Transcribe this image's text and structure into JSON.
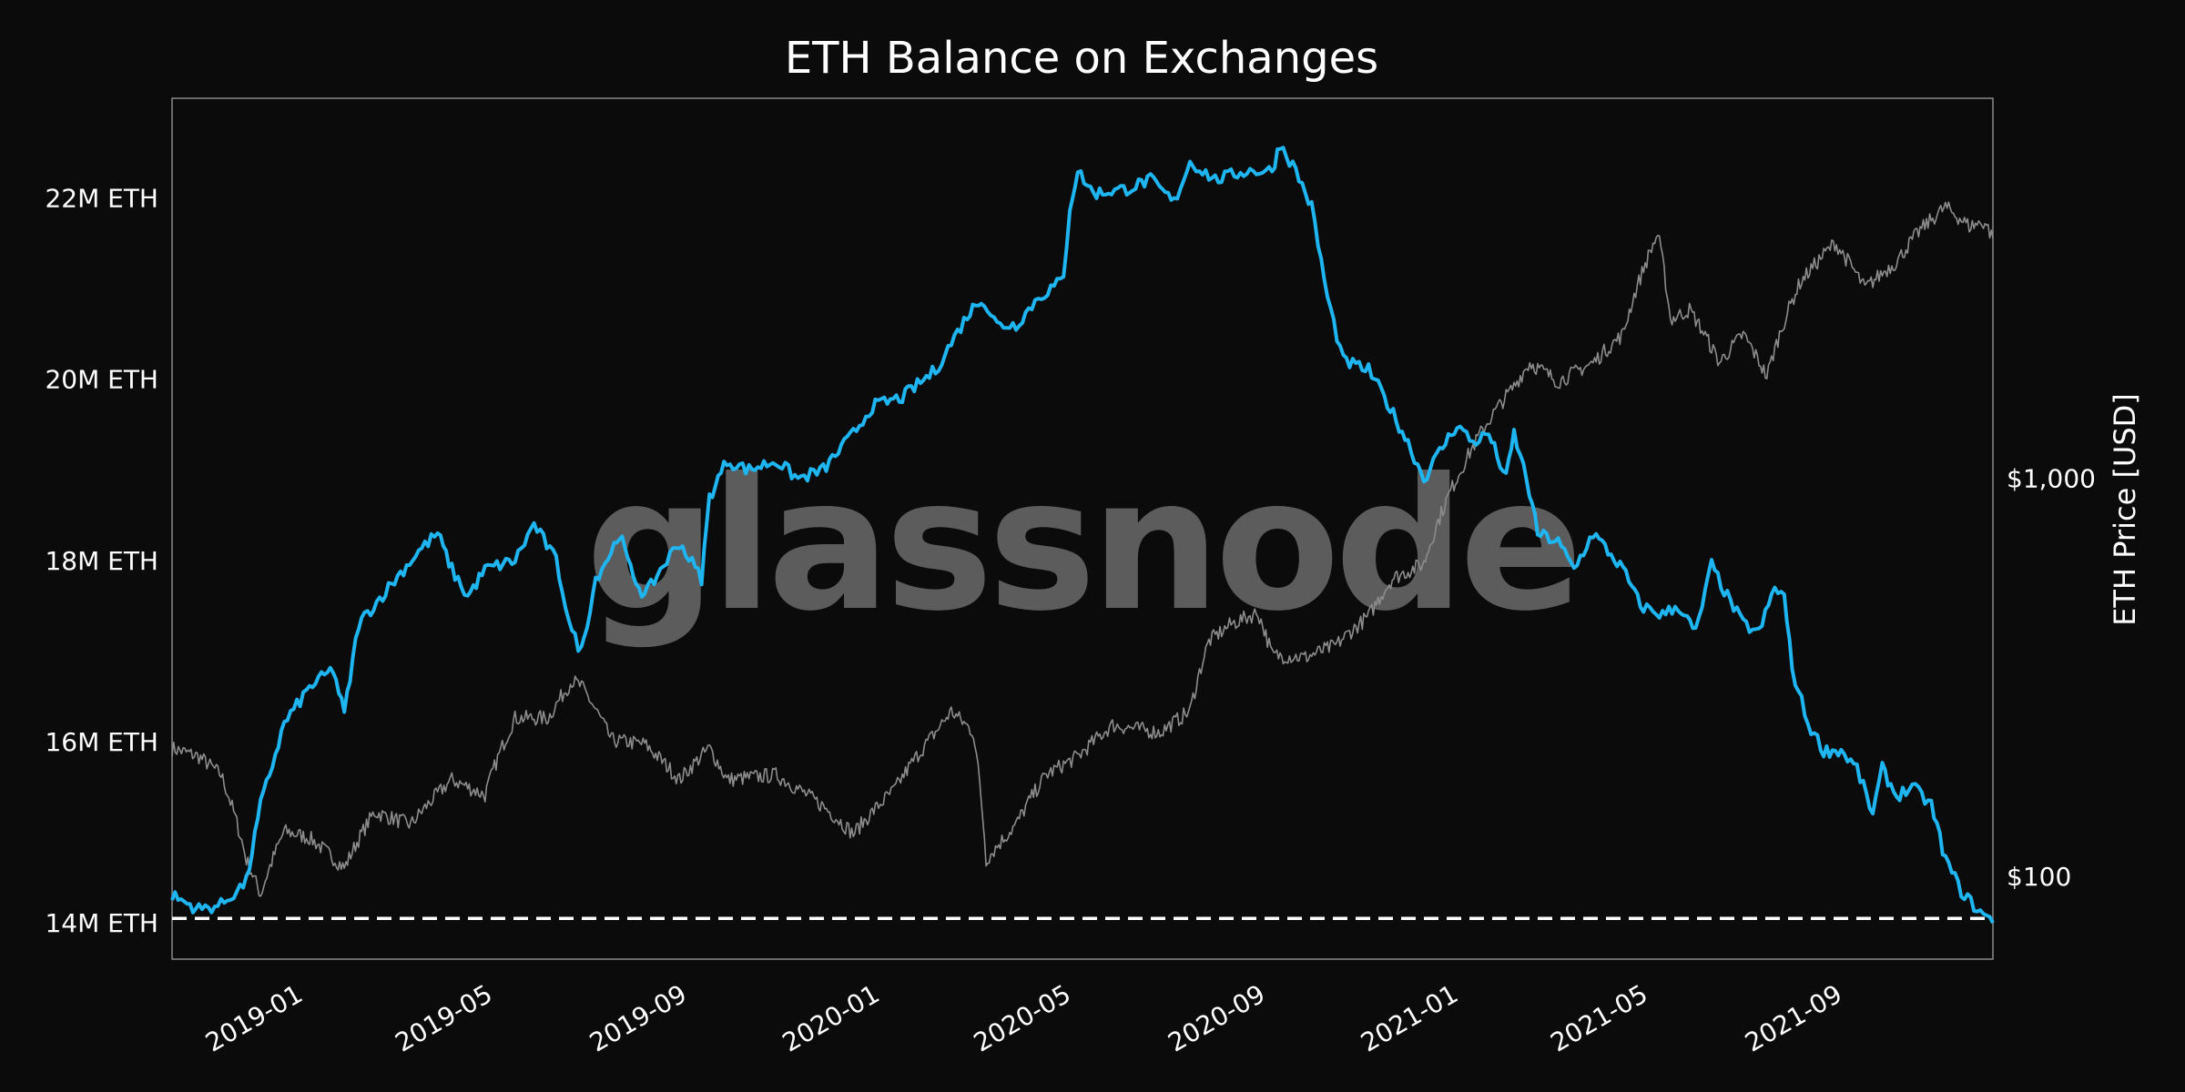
{
  "chart_data": {
    "type": "line",
    "title": "ETH Balance on Exchanges",
    "watermark": "glassnode",
    "xlabel": "",
    "ylabel_left": "",
    "ylabel_right": "ETH Price [USD]",
    "x_range": [
      "2018-10-15",
      "2021-12-10"
    ],
    "x_ticks": [
      "2019-01",
      "2019-05",
      "2019-09",
      "2020-01",
      "2020-05",
      "2020-09",
      "2021-01",
      "2021-05",
      "2021-09"
    ],
    "x_tick_dates": [
      "2019-01-01",
      "2019-05-01",
      "2019-09-01",
      "2020-01-01",
      "2020-05-01",
      "2020-09-01",
      "2021-01-01",
      "2021-05-01",
      "2021-09-01"
    ],
    "y_left_range": [
      13600000,
      23100000
    ],
    "y_left_ticks": [
      14000000,
      16000000,
      18000000,
      20000000,
      22000000
    ],
    "y_left_tick_labels": [
      "14M ETH",
      "16M ETH",
      "18M ETH",
      "20M ETH",
      "22M ETH"
    ],
    "y_right_scale": "log",
    "y_right_range": [
      62,
      9000
    ],
    "y_right_ticks": [
      100,
      1000
    ],
    "y_right_tick_labels": [
      "$100",
      "$1,000"
    ],
    "reference_line": {
      "value": 14050000,
      "style": "dashed",
      "color": "#ffffff"
    },
    "colors": {
      "balance": "#1eb5f0",
      "price": "#8c8c8c",
      "background": "#0b0b0b",
      "frame": "#8a8a8a"
    },
    "grid": false,
    "legend": "none",
    "series": [
      {
        "axis": "left",
        "color": "#1eb5f0",
        "points": [
          [
            "2018-10-15",
            14300000
          ],
          [
            "2018-11-01",
            14150000
          ],
          [
            "2018-11-15",
            14200000
          ],
          [
            "2018-12-01",
            14450000
          ],
          [
            "2018-12-10",
            15300000
          ],
          [
            "2018-12-25",
            16200000
          ],
          [
            "2019-01-10",
            16600000
          ],
          [
            "2019-01-25",
            16800000
          ],
          [
            "2019-02-01",
            16300000
          ],
          [
            "2019-02-10",
            17300000
          ],
          [
            "2019-03-01",
            17700000
          ],
          [
            "2019-03-20",
            18100000
          ],
          [
            "2019-04-01",
            18300000
          ],
          [
            "2019-04-10",
            17900000
          ],
          [
            "2019-04-20",
            17600000
          ],
          [
            "2019-05-01",
            17900000
          ],
          [
            "2019-05-20",
            18000000
          ],
          [
            "2019-06-01",
            18400000
          ],
          [
            "2019-06-15",
            18000000
          ],
          [
            "2019-06-25",
            17200000
          ],
          [
            "2019-07-01",
            17000000
          ],
          [
            "2019-07-10",
            17800000
          ],
          [
            "2019-07-20",
            18100000
          ],
          [
            "2019-07-25",
            18300000
          ],
          [
            "2019-08-01",
            17900000
          ],
          [
            "2019-08-10",
            17600000
          ],
          [
            "2019-08-20",
            17900000
          ],
          [
            "2019-09-01",
            18200000
          ],
          [
            "2019-09-15",
            17800000
          ],
          [
            "2019-09-20",
            18700000
          ],
          [
            "2019-10-01",
            19100000
          ],
          [
            "2019-10-15",
            19000000
          ],
          [
            "2019-11-01",
            19100000
          ],
          [
            "2019-11-15",
            18900000
          ],
          [
            "2019-12-01",
            19000000
          ],
          [
            "2019-12-20",
            19400000
          ],
          [
            "2020-01-01",
            19700000
          ],
          [
            "2020-01-20",
            19800000
          ],
          [
            "2020-02-10",
            20100000
          ],
          [
            "2020-03-01",
            20700000
          ],
          [
            "2020-03-10",
            20900000
          ],
          [
            "2020-03-20",
            20600000
          ],
          [
            "2020-04-01",
            20600000
          ],
          [
            "2020-04-15",
            20900000
          ],
          [
            "2020-05-01",
            21100000
          ],
          [
            "2020-05-05",
            21900000
          ],
          [
            "2020-05-10",
            22300000
          ],
          [
            "2020-05-20",
            22050000
          ],
          [
            "2020-06-10",
            22100000
          ],
          [
            "2020-06-25",
            22200000
          ],
          [
            "2020-07-10",
            21950000
          ],
          [
            "2020-07-20",
            22400000
          ],
          [
            "2020-08-05",
            22200000
          ],
          [
            "2020-08-25",
            22300000
          ],
          [
            "2020-09-10",
            22300000
          ],
          [
            "2020-09-15",
            22600000
          ],
          [
            "2020-09-25",
            22300000
          ],
          [
            "2020-10-05",
            21900000
          ],
          [
            "2020-10-15",
            20900000
          ],
          [
            "2020-10-25",
            20200000
          ],
          [
            "2020-11-10",
            20100000
          ],
          [
            "2020-11-20",
            19800000
          ],
          [
            "2020-12-05",
            19300000
          ],
          [
            "2020-12-15",
            18900000
          ],
          [
            "2020-12-25",
            19200000
          ],
          [
            "2021-01-05",
            19500000
          ],
          [
            "2021-01-15",
            19300000
          ],
          [
            "2021-01-25",
            19400000
          ],
          [
            "2021-02-05",
            18900000
          ],
          [
            "2021-02-10",
            19400000
          ],
          [
            "2021-02-18",
            18900000
          ],
          [
            "2021-02-25",
            18300000
          ],
          [
            "2021-03-10",
            18200000
          ],
          [
            "2021-03-20",
            17900000
          ],
          [
            "2021-04-01",
            18300000
          ],
          [
            "2021-04-20",
            17900000
          ],
          [
            "2021-05-01",
            17500000
          ],
          [
            "2021-05-15",
            17400000
          ],
          [
            "2021-05-25",
            17500000
          ],
          [
            "2021-06-05",
            17200000
          ],
          [
            "2021-06-15",
            17950000
          ],
          [
            "2021-06-25",
            17600000
          ],
          [
            "2021-07-05",
            17300000
          ],
          [
            "2021-07-15",
            17200000
          ],
          [
            "2021-07-25",
            17700000
          ],
          [
            "2021-07-31",
            17600000
          ],
          [
            "2021-08-05",
            16800000
          ],
          [
            "2021-08-15",
            16200000
          ],
          [
            "2021-08-25",
            15900000
          ],
          [
            "2021-09-05",
            15900000
          ],
          [
            "2021-09-15",
            15700000
          ],
          [
            "2021-09-25",
            15200000
          ],
          [
            "2021-10-01",
            15700000
          ],
          [
            "2021-10-10",
            15400000
          ],
          [
            "2021-10-20",
            15500000
          ],
          [
            "2021-11-01",
            15300000
          ],
          [
            "2021-11-10",
            14700000
          ],
          [
            "2021-11-20",
            14350000
          ],
          [
            "2021-11-30",
            14150000
          ],
          [
            "2021-12-10",
            14000000
          ]
        ]
      },
      {
        "axis": "right",
        "color": "#8c8c8c",
        "points": [
          [
            "2018-10-15",
            210
          ],
          [
            "2018-11-01",
            200
          ],
          [
            "2018-11-15",
            180
          ],
          [
            "2018-12-01",
            110
          ],
          [
            "2018-12-10",
            90
          ],
          [
            "2018-12-25",
            130
          ],
          [
            "2019-01-10",
            125
          ],
          [
            "2019-02-01",
            105
          ],
          [
            "2019-02-20",
            145
          ],
          [
            "2019-03-15",
            135
          ],
          [
            "2019-04-10",
            175
          ],
          [
            "2019-05-01",
            160
          ],
          [
            "2019-05-20",
            250
          ],
          [
            "2019-06-10",
            250
          ],
          [
            "2019-06-25",
            310
          ],
          [
            "2019-07-01",
            300
          ],
          [
            "2019-07-20",
            220
          ],
          [
            "2019-08-10",
            215
          ],
          [
            "2019-09-01",
            175
          ],
          [
            "2019-09-20",
            210
          ],
          [
            "2019-10-01",
            175
          ],
          [
            "2019-11-01",
            180
          ],
          [
            "2019-12-01",
            150
          ],
          [
            "2019-12-20",
            128
          ],
          [
            "2020-01-15",
            165
          ],
          [
            "2020-02-10",
            230
          ],
          [
            "2020-02-20",
            260
          ],
          [
            "2020-03-05",
            230
          ],
          [
            "2020-03-13",
            110
          ],
          [
            "2020-04-01",
            135
          ],
          [
            "2020-04-20",
            180
          ],
          [
            "2020-05-10",
            200
          ],
          [
            "2020-06-01",
            240
          ],
          [
            "2020-07-01",
            230
          ],
          [
            "2020-07-20",
            260
          ],
          [
            "2020-08-01",
            390
          ],
          [
            "2020-08-15",
            430
          ],
          [
            "2020-09-01",
            460
          ],
          [
            "2020-09-10",
            360
          ],
          [
            "2020-10-01",
            355
          ],
          [
            "2020-10-20",
            380
          ],
          [
            "2020-11-10",
            450
          ],
          [
            "2020-11-25",
            560
          ],
          [
            "2020-12-15",
            610
          ],
          [
            "2021-01-10",
            1100
          ],
          [
            "2021-01-20",
            1300
          ],
          [
            "2021-02-10",
            1700
          ],
          [
            "2021-02-20",
            1950
          ],
          [
            "2021-03-10",
            1750
          ],
          [
            "2021-04-01",
            1950
          ],
          [
            "2021-04-20",
            2300
          ],
          [
            "2021-05-12",
            4100
          ],
          [
            "2021-05-20",
            2500
          ],
          [
            "2021-06-01",
            2650
          ],
          [
            "2021-06-20",
            1950
          ],
          [
            "2021-07-05",
            2300
          ],
          [
            "2021-07-20",
            1800
          ],
          [
            "2021-08-10",
            3100
          ],
          [
            "2021-09-01",
            3900
          ],
          [
            "2021-09-20",
            3000
          ],
          [
            "2021-10-10",
            3500
          ],
          [
            "2021-10-25",
            4200
          ],
          [
            "2021-11-10",
            4800
          ],
          [
            "2021-11-25",
            4300
          ],
          [
            "2021-12-05",
            4400
          ],
          [
            "2021-12-10",
            4000
          ]
        ]
      }
    ]
  }
}
